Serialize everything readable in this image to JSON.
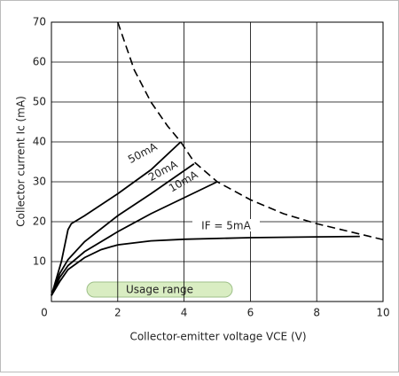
{
  "chart_data": {
    "type": "line",
    "xlabel": "Collector-emitter voltage VCE (V)",
    "ylabel": "Collector current Ic (mA)",
    "annotation": "Usage range",
    "xlim": [
      0,
      10
    ],
    "ylim": [
      0,
      70
    ],
    "xticks": [
      0,
      2,
      4,
      6,
      8,
      10
    ],
    "yticks": [
      10,
      20,
      30,
      40,
      50,
      60,
      70
    ],
    "grid": true,
    "series": [
      {
        "name": "IF = 5mA",
        "color": "#000000",
        "x": [
          0,
          0.25,
          0.5,
          1,
          1.5,
          2,
          3,
          4,
          6,
          8,
          9.3
        ],
        "values": [
          1.5,
          5,
          8,
          11,
          13,
          14.2,
          15.2,
          15.6,
          16,
          16.2,
          16.3
        ]
      },
      {
        "name": "10mA",
        "color": "#000000",
        "x": [
          0,
          0.25,
          0.5,
          1,
          2,
          3,
          4,
          5
        ],
        "values": [
          1.5,
          6,
          9,
          12.5,
          17.5,
          22,
          26,
          30
        ]
      },
      {
        "name": "20mA",
        "color": "#000000",
        "x": [
          0,
          0.25,
          0.5,
          1,
          2,
          3,
          4.3
        ],
        "values": [
          1.5,
          7,
          10.5,
          15,
          21.5,
          27,
          34.5
        ]
      },
      {
        "name": "50mA",
        "color": "#000000",
        "x": [
          0,
          0.3,
          0.5,
          0.6,
          1,
          2,
          3,
          3.9
        ],
        "values": [
          1.5,
          10,
          18,
          19.5,
          21.5,
          27,
          33,
          40
        ]
      },
      {
        "color": "#000000",
        "dashed": true,
        "x": [
          2,
          2.5,
          3,
          3.5,
          3.9,
          4.3,
          5,
          6,
          7,
          8,
          9,
          10
        ],
        "values": [
          70,
          58,
          50,
          44,
          40,
          35,
          30,
          25.5,
          22,
          19.5,
          17.5,
          15.5
        ]
      }
    ]
  }
}
